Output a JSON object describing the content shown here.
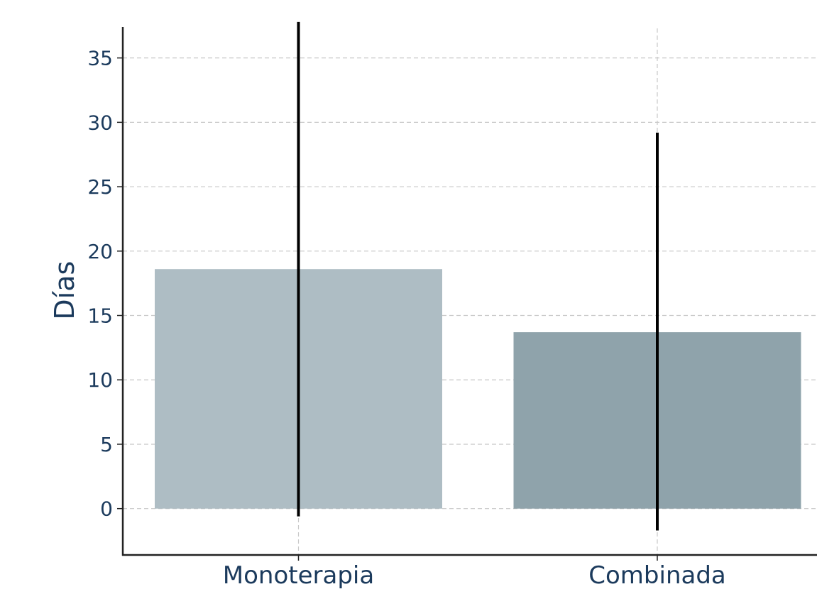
{
  "chart_data": {
    "type": "bar",
    "categories": [
      "Monoterapia",
      "Combinada"
    ],
    "values": [
      18.6,
      13.7
    ],
    "error_low": [
      -0.6,
      -1.7
    ],
    "error_high": [
      37.8,
      29.2
    ],
    "bar_colors": [
      "#aebdc4",
      "#8fa3ab"
    ],
    "title": "",
    "xlabel": "",
    "ylabel": "Días",
    "ylim": [
      -3.6,
      39.5
    ],
    "yticks": [
      0,
      5,
      10,
      15,
      20,
      25,
      30,
      35
    ],
    "grid": true
  }
}
